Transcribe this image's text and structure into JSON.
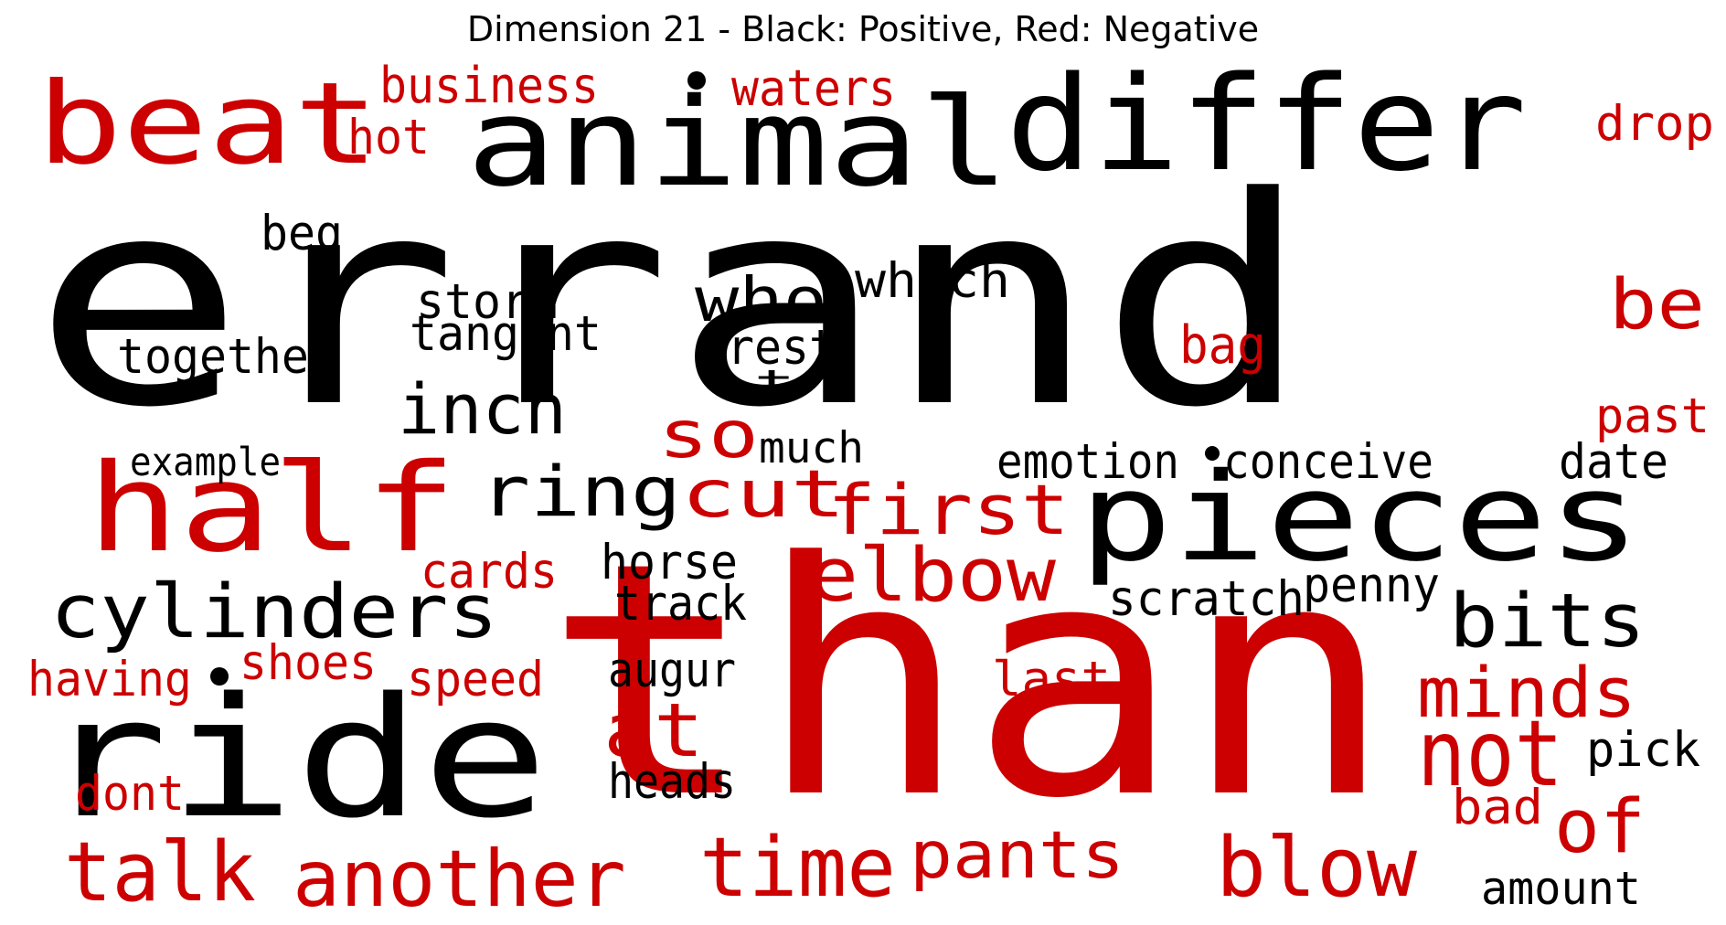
{
  "title": "Dimension 21 - Black: Positive, Red: Negative",
  "colors": {
    "positive": "#000000",
    "negative": "#cc0000"
  },
  "words": [
    {
      "text": "errand",
      "polarity": "positive"
    },
    {
      "text": "than",
      "polarity": "negative"
    },
    {
      "text": "animal",
      "polarity": "positive"
    },
    {
      "text": "differ",
      "polarity": "positive"
    },
    {
      "text": "beat",
      "polarity": "negative"
    },
    {
      "text": "half",
      "polarity": "negative"
    },
    {
      "text": "pieces",
      "polarity": "positive"
    },
    {
      "text": "ride",
      "polarity": "positive"
    },
    {
      "text": "cylinders",
      "polarity": "positive"
    },
    {
      "text": "ring",
      "polarity": "positive"
    },
    {
      "text": "first",
      "polarity": "negative"
    },
    {
      "text": "elbow",
      "polarity": "negative"
    },
    {
      "text": "cut",
      "polarity": "negative"
    },
    {
      "text": "inch",
      "polarity": "positive"
    },
    {
      "text": "who",
      "polarity": "positive"
    },
    {
      "text": "so",
      "polarity": "negative"
    },
    {
      "text": "bits",
      "polarity": "positive"
    },
    {
      "text": "minds",
      "polarity": "negative"
    },
    {
      "text": "not",
      "polarity": "negative"
    },
    {
      "text": "of",
      "polarity": "negative"
    },
    {
      "text": "blow",
      "polarity": "negative"
    },
    {
      "text": "pants",
      "polarity": "negative"
    },
    {
      "text": "time",
      "polarity": "negative"
    },
    {
      "text": "another",
      "polarity": "negative"
    },
    {
      "text": "talk",
      "polarity": "negative"
    },
    {
      "text": "at",
      "polarity": "negative"
    },
    {
      "text": "be",
      "polarity": "negative"
    },
    {
      "text": "business",
      "polarity": "negative"
    },
    {
      "text": "waters",
      "polarity": "negative"
    },
    {
      "text": "hot",
      "polarity": "negative"
    },
    {
      "text": "drop",
      "polarity": "negative"
    },
    {
      "text": "beg",
      "polarity": "positive"
    },
    {
      "text": "storm",
      "polarity": "positive"
    },
    {
      "text": "tangent",
      "polarity": "positive"
    },
    {
      "text": "together",
      "polarity": "positive"
    },
    {
      "text": "which",
      "polarity": "positive"
    },
    {
      "text": "rest",
      "polarity": "positive"
    },
    {
      "text": "t",
      "polarity": "positive"
    },
    {
      "text": "bag",
      "polarity": "negative"
    },
    {
      "text": "past",
      "polarity": "negative"
    },
    {
      "text": "much",
      "polarity": "positive"
    },
    {
      "text": "example",
      "polarity": "positive"
    },
    {
      "text": "emotion",
      "polarity": "positive"
    },
    {
      "text": "conceive",
      "polarity": "positive"
    },
    {
      "text": "date",
      "polarity": "positive"
    },
    {
      "text": "cards",
      "polarity": "negative"
    },
    {
      "text": "horse",
      "polarity": "positive"
    },
    {
      "text": "track",
      "polarity": "positive"
    },
    {
      "text": "scratch",
      "polarity": "positive"
    },
    {
      "text": "penny",
      "polarity": "positive"
    },
    {
      "text": "having",
      "polarity": "negative"
    },
    {
      "text": "shoes",
      "polarity": "negative"
    },
    {
      "text": "speed",
      "polarity": "negative"
    },
    {
      "text": "augur",
      "polarity": "positive"
    },
    {
      "text": "last",
      "polarity": "negative"
    },
    {
      "text": "pick",
      "polarity": "positive"
    },
    {
      "text": "dont",
      "polarity": "negative"
    },
    {
      "text": "heads",
      "polarity": "positive"
    },
    {
      "text": "bad",
      "polarity": "negative"
    },
    {
      "text": "amount",
      "polarity": "positive"
    }
  ]
}
